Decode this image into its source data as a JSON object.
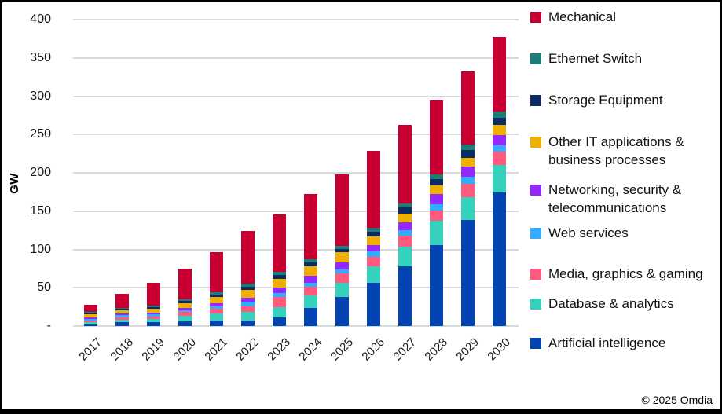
{
  "chart_data": {
    "type": "bar",
    "stacked": true,
    "ylabel": "GW",
    "ylim": [
      0,
      400
    ],
    "ytick_step": 50,
    "ytick_labels": [
      "400",
      "350",
      "300",
      "250",
      "200",
      "150",
      "100",
      "50",
      "-"
    ],
    "grid": "horizontal",
    "legend_position": "right",
    "categories": [
      "2017",
      "2018",
      "2019",
      "2020",
      "2021",
      "2022",
      "2023",
      "2024",
      "2025",
      "2026",
      "2027",
      "2028",
      "2029",
      "2030"
    ],
    "series": [
      {
        "name": "Artificial intelligence",
        "color": "#0443b2",
        "values": [
          2.5,
          5,
          5.5,
          6.5,
          7,
          7.5,
          11.5,
          23.5,
          37.5,
          56,
          78,
          106,
          138,
          174
        ]
      },
      {
        "name": "Database & analytics",
        "color": "#35d1bd",
        "values": [
          2.5,
          3.5,
          4,
          7,
          9,
          10.5,
          13.5,
          17,
          18.5,
          22,
          25.5,
          31.5,
          30.5,
          36.5
        ]
      },
      {
        "name": "Media, graphics & gaming",
        "color": "#ff5a7e",
        "values": [
          2.5,
          2.5,
          3,
          4.5,
          7,
          8,
          13,
          10.5,
          12.5,
          12,
          14.5,
          13,
          17,
          17.5
        ]
      },
      {
        "name": "Web services",
        "color": "#33abff",
        "values": [
          2,
          3,
          2.5,
          2.5,
          3,
          5.5,
          5.5,
          5.5,
          5.5,
          7,
          7.5,
          8.5,
          9,
          8
        ]
      },
      {
        "name": "Networking, security & telecommunications",
        "color": "#9429ff",
        "values": [
          2,
          2,
          2.5,
          3,
          4,
          5,
          7,
          9,
          9.5,
          9,
          10,
          13,
          13.5,
          13.5
        ]
      },
      {
        "name": "Other IT applications & business processes",
        "color": "#eeaf00",
        "values": [
          3.5,
          4.5,
          5,
          6.5,
          7.5,
          10.5,
          11.5,
          12,
          12.5,
          10.5,
          11,
          12,
          11.5,
          13.5
        ]
      },
      {
        "name": "Storage Equipment",
        "color": "#0d2b63",
        "values": [
          2,
          2,
          2.5,
          2.5,
          3.5,
          4,
          4.5,
          5.5,
          4.5,
          7,
          8.5,
          8,
          10,
          9
        ]
      },
      {
        "name": "Ethernet Switch",
        "color": "#1b7e76",
        "values": [
          1.5,
          1.5,
          2,
          2,
          3.5,
          4,
          4,
          4,
          4,
          5,
          5,
          6,
          7,
          8
        ]
      },
      {
        "name": "Mechanical",
        "color": "#c80032",
        "values": [
          9.5,
          18.5,
          29.5,
          40.5,
          52,
          69,
          75.5,
          85,
          94,
          100.5,
          103,
          97.5,
          95.5,
          97
        ]
      }
    ],
    "legend": [
      {
        "label": "Mechanical",
        "color": "#c80032"
      },
      {
        "label": "Ethernet Switch",
        "color": "#1b7e76"
      },
      {
        "label": "Storage Equipment",
        "color": "#0d2b63"
      },
      {
        "label": "Other IT applications & business processes",
        "color": "#eeaf00"
      },
      {
        "label": "Networking, security & telecommunications",
        "color": "#9429ff"
      },
      {
        "label": "Web services",
        "color": "#33abff"
      },
      {
        "label": "Media, graphics & gaming",
        "color": "#ff5a7e"
      },
      {
        "label": "Database & analytics",
        "color": "#35d1bd"
      },
      {
        "label": "Artificial intelligence",
        "color": "#0443b2"
      }
    ]
  },
  "footer": {
    "copyright": "© 2025 Omdia"
  }
}
